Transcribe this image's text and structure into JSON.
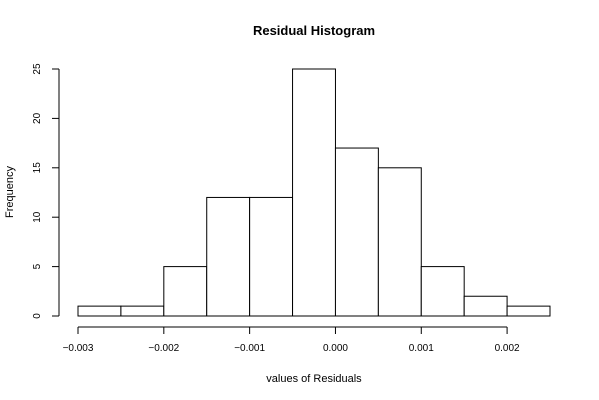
{
  "chart_data": {
    "type": "bar",
    "title": "Residual Histogram",
    "xlabel": "values of Residuals",
    "ylabel": "Frequency",
    "bins": [
      {
        "from": -0.003,
        "to": -0.0025,
        "count": 1
      },
      {
        "from": -0.0025,
        "to": -0.002,
        "count": 1
      },
      {
        "from": -0.002,
        "to": -0.0015,
        "count": 5
      },
      {
        "from": -0.0015,
        "to": -0.001,
        "count": 12
      },
      {
        "from": -0.001,
        "to": -0.0005,
        "count": 12
      },
      {
        "from": -0.0005,
        "to": 0.0,
        "count": 25
      },
      {
        "from": 0.0,
        "to": 0.0005,
        "count": 17
      },
      {
        "from": 0.0005,
        "to": 0.001,
        "count": 15
      },
      {
        "from": 0.001,
        "to": 0.0015,
        "count": 5
      },
      {
        "from": 0.0015,
        "to": 0.002,
        "count": 2
      },
      {
        "from": 0.002,
        "to": 0.0025,
        "count": 1
      }
    ],
    "xticks": [
      -0.003,
      -0.002,
      -0.001,
      0.0,
      0.001,
      0.002
    ],
    "xtick_labels": [
      "−0.003",
      "−0.002",
      "−0.001",
      "0.000",
      "0.001",
      "0.002"
    ],
    "yticks": [
      0,
      5,
      10,
      15,
      20,
      25
    ],
    "ytick_labels": [
      "0",
      "5",
      "10",
      "15",
      "20",
      "25"
    ],
    "xlim": [
      -0.003,
      0.0025
    ],
    "ylim": [
      0,
      25
    ],
    "grid": false,
    "bar_fill": "#ffffff",
    "bar_stroke": "#000000"
  }
}
